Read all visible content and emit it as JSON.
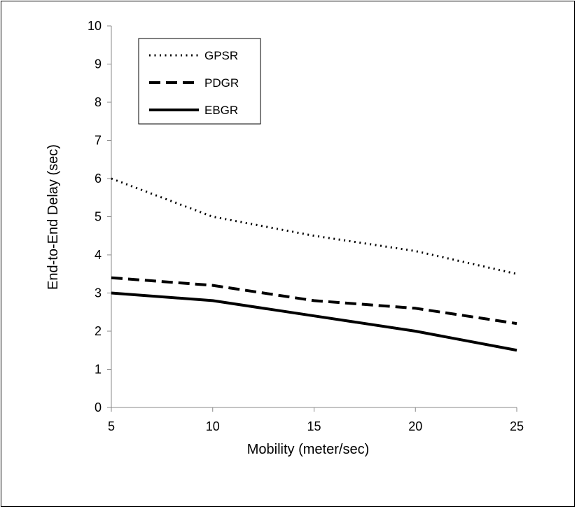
{
  "chart_data": {
    "type": "line",
    "xlabel": "Mobility (meter/sec)",
    "ylabel": "End-to-End Delay (sec)",
    "x": [
      5,
      10,
      15,
      20,
      25
    ],
    "xlim": [
      5,
      25
    ],
    "ylim": [
      0,
      10
    ],
    "x_ticks": [
      "5",
      "10",
      "15",
      "20",
      "25"
    ],
    "y_ticks": [
      "0",
      "1",
      "2",
      "3",
      "4",
      "5",
      "6",
      "7",
      "8",
      "9",
      "10"
    ],
    "grid": false,
    "legend_position": "top-left",
    "series": [
      {
        "name": "GPSR",
        "values": [
          6.0,
          5.0,
          4.5,
          4.1,
          3.5
        ],
        "style": "dotted",
        "color": "#000000"
      },
      {
        "name": "PDGR",
        "values": [
          3.4,
          3.2,
          2.8,
          2.6,
          2.2
        ],
        "style": "dashed",
        "color": "#000000"
      },
      {
        "name": "EBGR",
        "values": [
          3.0,
          2.8,
          2.4,
          2.0,
          1.5
        ],
        "style": "solid",
        "color": "#000000"
      }
    ]
  }
}
